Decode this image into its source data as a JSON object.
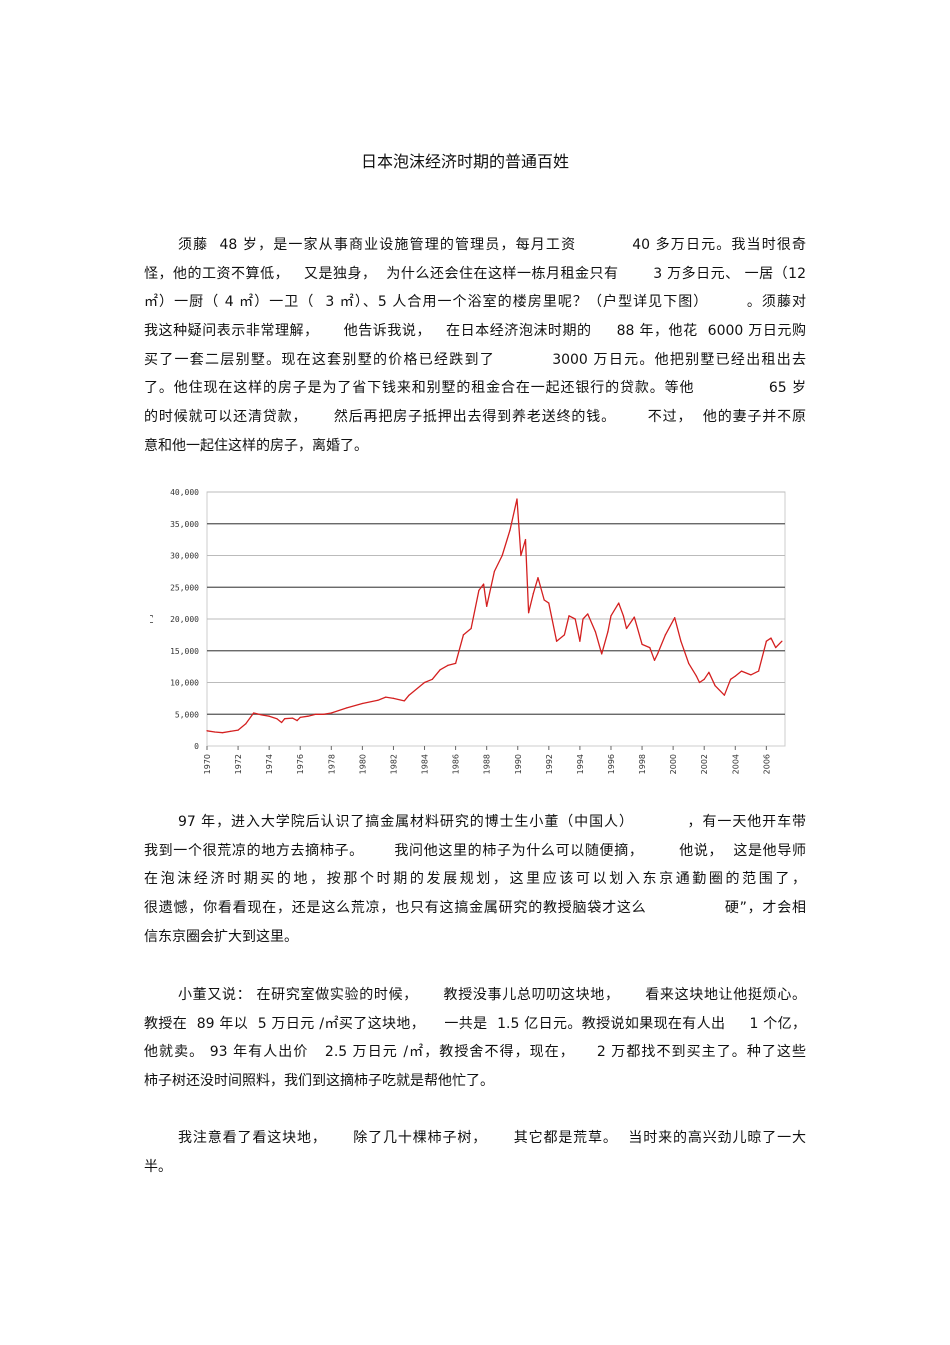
{
  "document": {
    "title": "日本泡沫经济时期的普通百姓",
    "paragraphs": [
      {
        "lines": [
          "须藤  48 岁，是一家从事商业设施管理的管理员，每月工资          40 多万日元。我当时很奇",
          "怪，他的工资不算低，   又是独身，  为什么还会住在这样一栋月租金只有       3 万多日元、 一居（12",
          "㎡）一厨（ 4 ㎡）一卫（  3 ㎡）、5 人合用一个浴室的楼房里呢？（户型详见下图）       。须藤对",
          "我这种疑问表示非常理解，     他告诉我说，   在日本经济泡沫时期的     88 年，他花  6000 万日元购",
          "买了一套二层别墅。现在这套别墅的价格已经跌到了          3000 万日元。他把别墅已经出租出去",
          "了。他住现在这样的房子是为了省下钱来和别墅的租金合在一起还银行的贷款。等他              65 岁",
          "的时候就可以还清贷款，     然后再把房子抵押出去得到养老送终的钱。      不过，  他的妻子并不原",
          "意和他一起住这样的房子，离婚了。"
        ]
      },
      {
        "lines": [
          "97 年，进入大学院后认识了搞金属材料研究的博士生小董（中国人）          ，有一天他开车带",
          "我到一个很荒凉的地方去摘柿子。      我问他这里的柿子为什么可以随便摘，       他说，  这是他导师",
          "在泡沫经济时期买的地，按那个时期的发展规划，这里应该可以划入东京通勤圈的范围了，",
          "很遗憾，你看看现在，还是这么荒凉，也只有这搞金属研究的教授脑袋才这么               硬”，才会相",
          "信东京圈会扩大到这里。"
        ]
      },
      {
        "lines": [
          "小董又说： 在研究室做实验的时候，     教授没事儿总叨叨这块地，     看来这块地让他挺烦心。",
          "教授在  89 年以  5 万日元 /㎡买了这块地，    一共是  1.5 亿日元。教授说如果现在有人出     1 个亿，",
          "他就卖。 93 年有人出价   2.5 万日元 /㎡，教授舍不得，现在，    2 万都找不到买主了。种了这些",
          "柿子树还没时间照料，我们到这摘柿子吃就是帮他忙了。"
        ]
      },
      {
        "lines": [
          "我注意看了看这块地，     除了几十棵柿子树，     其它都是荒草。  当时来的高兴劲儿晾了一大",
          "半。"
        ]
      }
    ]
  },
  "chart_data": {
    "type": "line",
    "title": "",
    "xlabel": "",
    "ylabel": "円",
    "xlim": [
      1970,
      2007.2
    ],
    "ylim": [
      0,
      40000
    ],
    "yticks": [
      "0",
      "5,000",
      "10,000",
      "15,000",
      "20,000",
      "25,000",
      "30,000",
      "35,000",
      "40,000"
    ],
    "xticks": [
      "1970",
      "1972",
      "1974",
      "1976",
      "1978",
      "1980",
      "1982",
      "1984",
      "1986",
      "1988",
      "1990",
      "1992",
      "1994",
      "1996",
      "1998",
      "2000",
      "2002",
      "2004",
      "2006"
    ],
    "grid": true,
    "line_color": "#d42020",
    "series": [
      {
        "x": [
          1970,
          1970.5,
          1971,
          1971.5,
          1972,
          1972.5,
          1973,
          1973.5,
          1974,
          1974.5,
          1974.8,
          1975,
          1975.5,
          1975.8,
          1976,
          1976.5,
          1977,
          1977.5,
          1978,
          1979,
          1980,
          1981,
          1981.5,
          1982,
          1982.7,
          1983,
          1984,
          1984.5,
          1985,
          1985.5,
          1986,
          1986.5,
          1987,
          1987.5,
          1987.8,
          1988,
          1988.5,
          1989,
          1989.5,
          1989.95,
          1990.2,
          1990.5,
          1990.7,
          1991,
          1991.3,
          1991.7,
          1992,
          1992.5,
          1993,
          1993.3,
          1993.7,
          1994,
          1994.2,
          1994.5,
          1995,
          1995.4,
          1995.8,
          1996,
          1996.5,
          1996.8,
          1997,
          1997.5,
          1998,
          1998.5,
          1998.8,
          1999,
          1999.5,
          2000.1,
          2000.5,
          2001,
          2001.5,
          2001.7,
          2002,
          2002.3,
          2002.7,
          2003.3,
          2003.7,
          2004,
          2004.4,
          2005,
          2005.5,
          2006,
          2006.3,
          2006.6,
          2007
        ],
        "y": [
          2400,
          2200,
          2100,
          2300,
          2500,
          3500,
          5200,
          4900,
          4700,
          4300,
          3700,
          4300,
          4400,
          4000,
          4500,
          4700,
          5000,
          5000,
          5200,
          6000,
          6700,
          7200,
          7700,
          7500,
          7100,
          8000,
          10000,
          10500,
          12000,
          12700,
          13000,
          17500,
          18500,
          24500,
          25500,
          22000,
          27500,
          30000,
          34000,
          38900,
          30000,
          32500,
          21000,
          24000,
          26500,
          23000,
          22500,
          16500,
          17500,
          20500,
          20000,
          16500,
          20000,
          20800,
          18000,
          14500,
          18000,
          20500,
          22500,
          20500,
          18500,
          20300,
          16000,
          15500,
          13500,
          14500,
          17500,
          20200,
          16500,
          13000,
          11000,
          10000,
          10500,
          11600,
          9500,
          8000,
          10500,
          11000,
          11800,
          11200,
          11800,
          16500,
          17000,
          15500,
          16500
        ]
      }
    ]
  }
}
